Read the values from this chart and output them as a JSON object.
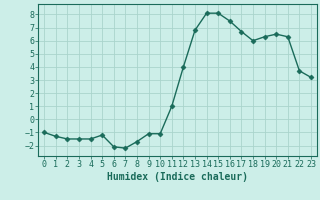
{
  "x": [
    0,
    1,
    2,
    3,
    4,
    5,
    6,
    7,
    8,
    9,
    10,
    11,
    12,
    13,
    14,
    15,
    16,
    17,
    18,
    19,
    20,
    21,
    22,
    23
  ],
  "y": [
    -1.0,
    -1.3,
    -1.5,
    -1.5,
    -1.5,
    -1.2,
    -2.1,
    -2.2,
    -1.7,
    -1.1,
    -1.1,
    1.0,
    4.0,
    6.8,
    8.1,
    8.1,
    7.5,
    6.7,
    6.0,
    6.3,
    6.5,
    6.3,
    3.7,
    3.2
  ],
  "line_color": "#1a6b5a",
  "marker": "D",
  "markersize": 2.5,
  "linewidth": 1.0,
  "bg_color": "#cceee8",
  "grid_color": "#aad4cc",
  "xlabel": "Humidex (Indice chaleur)",
  "xlabel_fontsize": 7,
  "tick_fontsize": 6,
  "ylim": [
    -2.8,
    8.8
  ],
  "xlim": [
    -0.5,
    23.5
  ],
  "yticks": [
    -2,
    -1,
    0,
    1,
    2,
    3,
    4,
    5,
    6,
    7,
    8
  ],
  "xticks": [
    0,
    1,
    2,
    3,
    4,
    5,
    6,
    7,
    8,
    9,
    10,
    11,
    12,
    13,
    14,
    15,
    16,
    17,
    18,
    19,
    20,
    21,
    22,
    23
  ]
}
